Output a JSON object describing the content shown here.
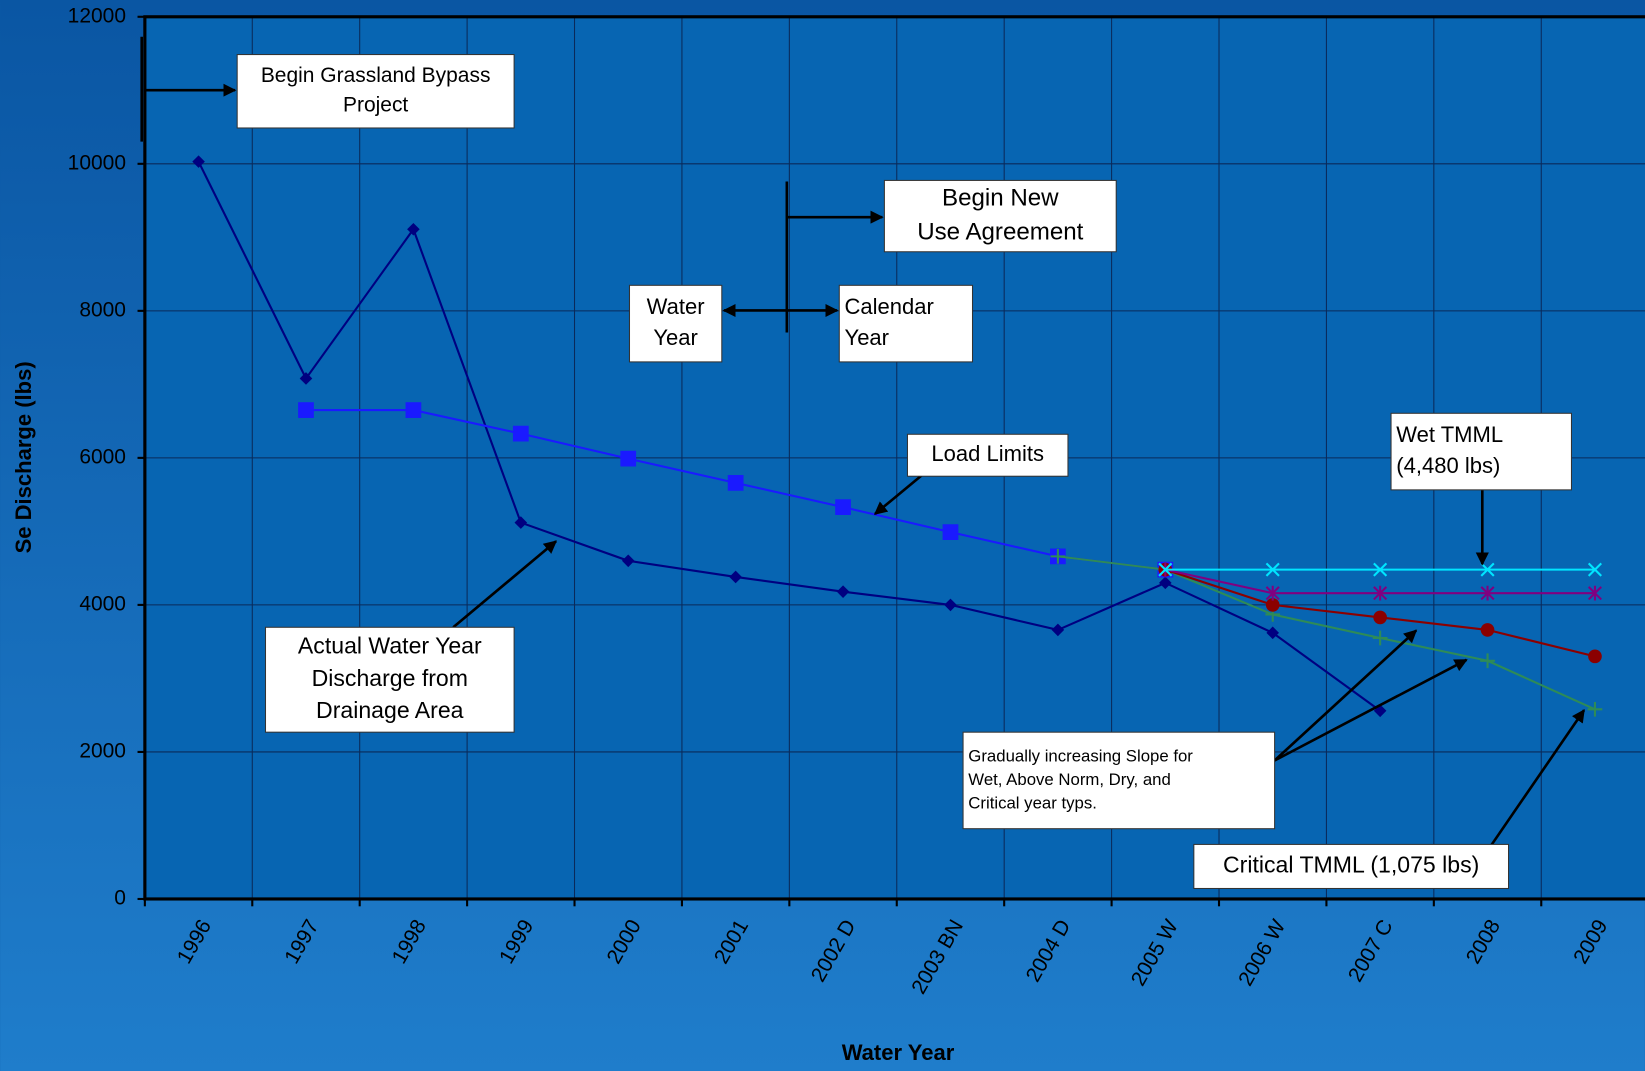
{
  "chart_data": {
    "type": "line",
    "x_label": "Water Year",
    "y_label": "Se Discharge (lbs)",
    "categories": [
      "1996",
      "1997",
      "1998",
      "1999",
      "2000",
      "2001",
      "2002 D",
      "2003 BN",
      "2004 D",
      "2005 W",
      "2006 W",
      "2007 C",
      "2008",
      "2009"
    ],
    "ylim": [
      0,
      12000
    ],
    "yticks": [
      0,
      2000,
      4000,
      6000,
      8000,
      10000,
      12000
    ],
    "grid": true,
    "series": [
      {
        "color": "#000080",
        "marker": "diamond",
        "values": [
          10030,
          7080,
          9110,
          5120,
          4600,
          4380,
          4180,
          4000,
          3660,
          4300,
          3620,
          2560,
          null,
          null
        ]
      },
      {
        "color": "#1a1aff",
        "marker": "square",
        "values": [
          null,
          6650,
          6650,
          6330,
          5990,
          5660,
          5330,
          4990,
          4660,
          4480,
          null,
          null,
          null,
          null
        ]
      },
      {
        "color": "#2e8b57",
        "marker": "plus",
        "values": [
          null,
          null,
          null,
          null,
          null,
          null,
          null,
          null,
          4660,
          4480,
          3870,
          3550,
          3240,
          2580
        ]
      },
      {
        "color": "#8b0000",
        "marker": "circle",
        "values": [
          null,
          null,
          null,
          null,
          null,
          null,
          null,
          null,
          null,
          4480,
          4000,
          3830,
          3660,
          3300
        ]
      },
      {
        "color": "#800080",
        "marker": "star",
        "values": [
          null,
          null,
          null,
          null,
          null,
          null,
          null,
          null,
          null,
          4480,
          4160,
          4160,
          4160,
          4160
        ]
      },
      {
        "color": "#00e5ff",
        "marker": "x",
        "values": [
          null,
          null,
          null,
          null,
          null,
          null,
          null,
          null,
          null,
          4480,
          4480,
          4480,
          4480,
          4480
        ]
      }
    ],
    "annotations": [
      {
        "lines": [
          "Begin Grassland Bypass",
          "Project"
        ]
      },
      {
        "lines": [
          "Begin New",
          "Use Agreement"
        ]
      },
      {
        "lines": [
          "Water",
          "Year"
        ]
      },
      {
        "lines": [
          "Calendar",
          "Year"
        ]
      },
      {
        "lines": [
          "Load Limits"
        ]
      },
      {
        "lines": [
          "Wet TMML",
          "(4,480 lbs)"
        ]
      },
      {
        "lines": [
          "Actual Water Year",
          "Discharge from",
          "Drainage Area"
        ]
      },
      {
        "lines": [
          "Gradually increasing Slope for",
          "Wet, Above Norm, Dry, and",
          "Critical year typs."
        ]
      },
      {
        "lines": [
          "Critical TMML (1,075 lbs)"
        ]
      }
    ]
  }
}
